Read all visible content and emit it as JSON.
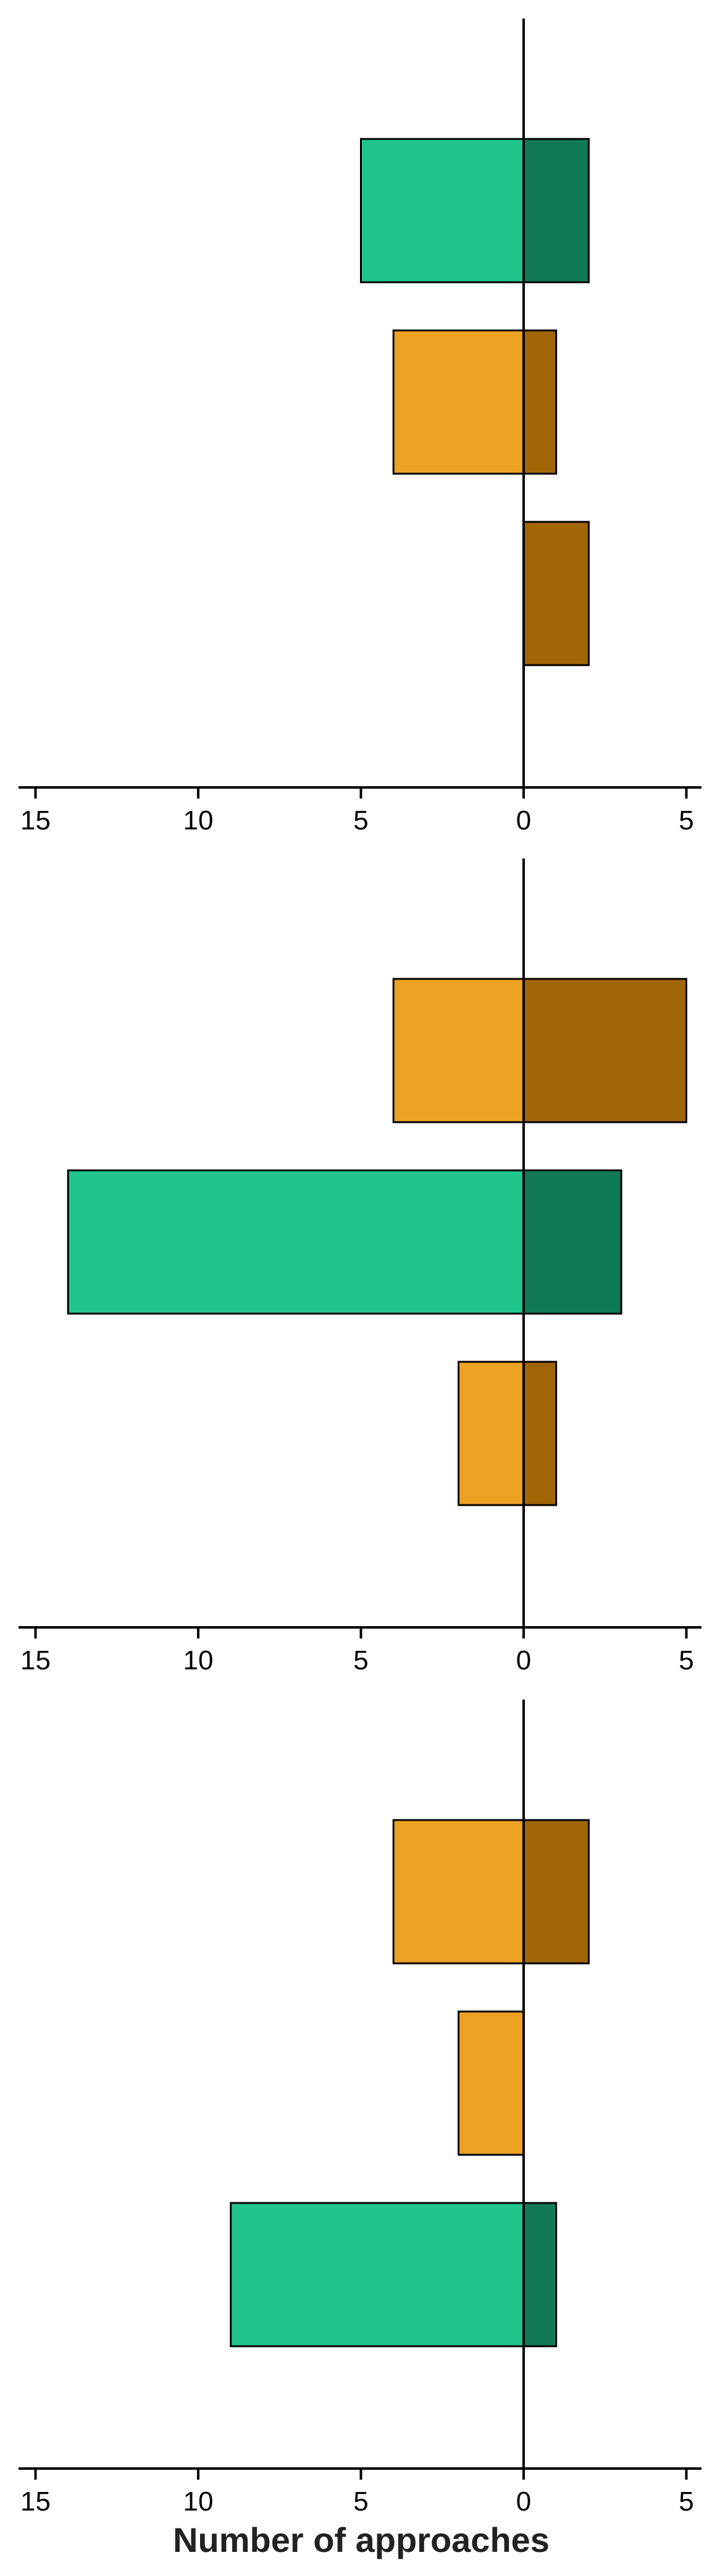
{
  "chart_data": [
    {
      "type": "bar",
      "orientation": "horizontal",
      "diverging": true,
      "xlim": [
        -15,
        5
      ],
      "xticks": [
        -15,
        -10,
        -5,
        0,
        5
      ],
      "xtick_labels": [
        "15",
        "10",
        "5",
        "0",
        "5"
      ],
      "xlabel": "",
      "bars": [
        {
          "left": -5,
          "right": 2,
          "left_color": "#20c58c",
          "right_color": "#107a58"
        },
        {
          "left": -4,
          "right": 1,
          "left_color": "#eea224",
          "right_color": "#a06505"
        },
        {
          "left": 0,
          "right": 2,
          "left_color": "#eea224",
          "right_color": "#a06505"
        }
      ]
    },
    {
      "type": "bar",
      "orientation": "horizontal",
      "diverging": true,
      "xlim": [
        -15,
        5
      ],
      "xticks": [
        -15,
        -10,
        -5,
        0,
        5
      ],
      "xtick_labels": [
        "15",
        "10",
        "5",
        "0",
        "5"
      ],
      "xlabel": "",
      "bars": [
        {
          "left": -4,
          "right": 5,
          "left_color": "#eea224",
          "right_color": "#a06505"
        },
        {
          "left": -14,
          "right": 3,
          "left_color": "#20c58c",
          "right_color": "#107a58"
        },
        {
          "left": -2,
          "right": 1,
          "left_color": "#eea224",
          "right_color": "#a06505"
        }
      ]
    },
    {
      "type": "bar",
      "orientation": "horizontal",
      "diverging": true,
      "xlim": [
        -15,
        5
      ],
      "xticks": [
        -15,
        -10,
        -5,
        0,
        5
      ],
      "xtick_labels": [
        "15",
        "10",
        "5",
        "0",
        "5"
      ],
      "xlabel": "Number of approaches",
      "bars": [
        {
          "left": -4,
          "right": 2,
          "left_color": "#eea224",
          "right_color": "#a06505"
        },
        {
          "left": -2,
          "right": 0,
          "left_color": "#eea224",
          "right_color": "#a06505"
        },
        {
          "left": -9,
          "right": 1,
          "left_color": "#20c58c",
          "right_color": "#107a58"
        }
      ]
    }
  ]
}
